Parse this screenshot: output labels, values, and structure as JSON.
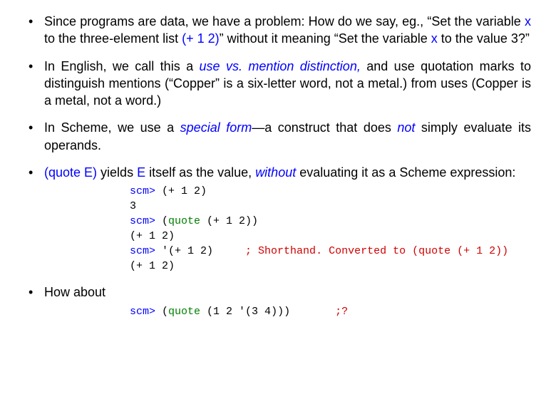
{
  "bullets": [
    {
      "parts": [
        {
          "t": "Since programs are data, we have a problem: How do we say, eg., “Set the variable "
        },
        {
          "t": "x",
          "cls": "blue"
        },
        {
          "t": " to the three-element list "
        },
        {
          "t": "(+ 1 2)",
          "cls": "blue"
        },
        {
          "t": "” without it meaning “Set the variable "
        },
        {
          "t": "x",
          "cls": "blue"
        },
        {
          "t": " to the value 3?”"
        }
      ]
    },
    {
      "parts": [
        {
          "t": "In English, we call this a "
        },
        {
          "t": "use vs. mention distinction,",
          "cls": "blue-it"
        },
        {
          "t": " and use quotation marks to distinguish mentions (“Copper” is a six-letter word, not a metal.) from uses (Copper is a metal, not a word.)"
        }
      ]
    },
    {
      "parts": [
        {
          "t": "In Scheme, we use a "
        },
        {
          "t": "special form",
          "cls": "blue-it"
        },
        {
          "t": "—a construct that does "
        },
        {
          "t": "not",
          "cls": "blue-it"
        },
        {
          "t": " simply evaluate its operands."
        }
      ]
    },
    {
      "parts": [
        {
          "t": "(quote E)",
          "cls": "blue"
        },
        {
          "t": " yields "
        },
        {
          "t": "E",
          "cls": "blue"
        },
        {
          "t": " itself as the value, "
        },
        {
          "t": "without",
          "cls": "blue-it"
        },
        {
          "t": " evaluating it as a Scheme expression:"
        }
      ],
      "code": [
        [
          {
            "t": "scm>",
            "cls": "prompt"
          },
          {
            "t": " (+ 1 2)"
          }
        ],
        [
          {
            "t": "3"
          }
        ],
        [
          {
            "t": "scm>",
            "cls": "prompt"
          },
          {
            "t": " ("
          },
          {
            "t": "quote",
            "cls": "kw"
          },
          {
            "t": " (+ 1 2))"
          }
        ],
        [
          {
            "t": "(+ 1 2)"
          }
        ],
        [
          {
            "t": "scm>",
            "cls": "prompt"
          },
          {
            "t": " '(+ 1 2)     "
          },
          {
            "t": "; Shorthand. Converted to (quote (+ 1 2))",
            "cls": "comment"
          }
        ],
        [
          {
            "t": "(+ 1 2)"
          }
        ]
      ]
    },
    {
      "parts": [
        {
          "t": "How about"
        }
      ],
      "code": [
        [
          {
            "t": "scm>",
            "cls": "prompt"
          },
          {
            "t": " ("
          },
          {
            "t": "quote",
            "cls": "kw"
          },
          {
            "t": " (1 2 '(3 4)))       "
          },
          {
            "t": ";?",
            "cls": "comment"
          }
        ]
      ]
    }
  ]
}
